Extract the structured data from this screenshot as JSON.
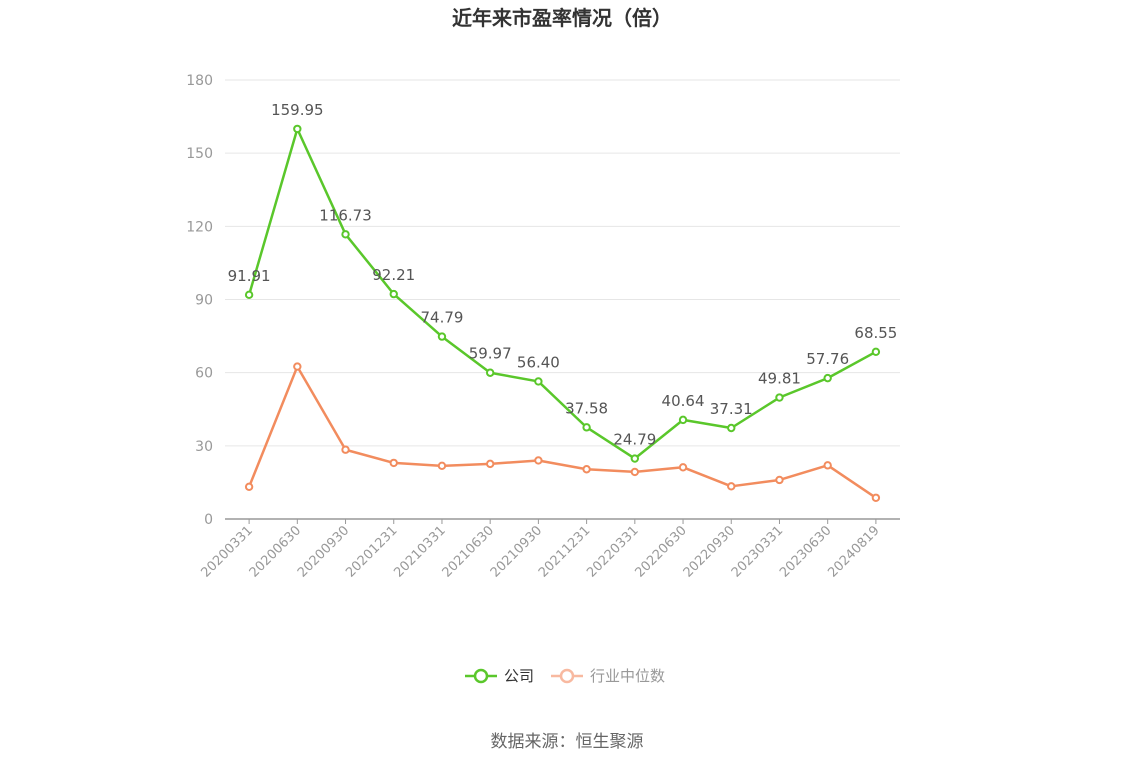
{
  "chart_data": {
    "type": "line",
    "title": "近年来市盈率情况（倍）",
    "x": [
      "20200331",
      "20200630",
      "20200930",
      "20201231",
      "20210331",
      "20210630",
      "20210930",
      "20211231",
      "20220331",
      "20220630",
      "20220930",
      "20230331",
      "20230630",
      "20240819"
    ],
    "yticks": [
      0,
      30,
      60,
      90,
      120,
      150,
      180
    ],
    "ylim": [
      0,
      180
    ],
    "grid": true,
    "legend_position": "bottom",
    "series": [
      {
        "name": "公司",
        "color": "#5ac72b",
        "values": [
          91.91,
          159.95,
          116.73,
          92.21,
          74.79,
          59.97,
          56.4,
          37.58,
          24.79,
          40.64,
          37.31,
          49.81,
          57.76,
          68.55
        ],
        "labels": [
          "91.91",
          "159.95",
          "116.73",
          "92.21",
          "74.79",
          "59.97",
          "56.40",
          "37.58",
          "24.79",
          "40.64",
          "37.31",
          "49.81",
          "57.76",
          "68.55"
        ]
      },
      {
        "name": "行业中位数",
        "color": "#f28c5e",
        "legend_color": "#f8b9a0",
        "values": [
          13.2,
          62.5,
          28.4,
          23.0,
          21.8,
          22.6,
          24.0,
          20.4,
          19.3,
          21.2,
          13.4,
          16.0,
          22.0,
          8.7
        ]
      }
    ],
    "source": "数据来源：恒生聚源"
  }
}
